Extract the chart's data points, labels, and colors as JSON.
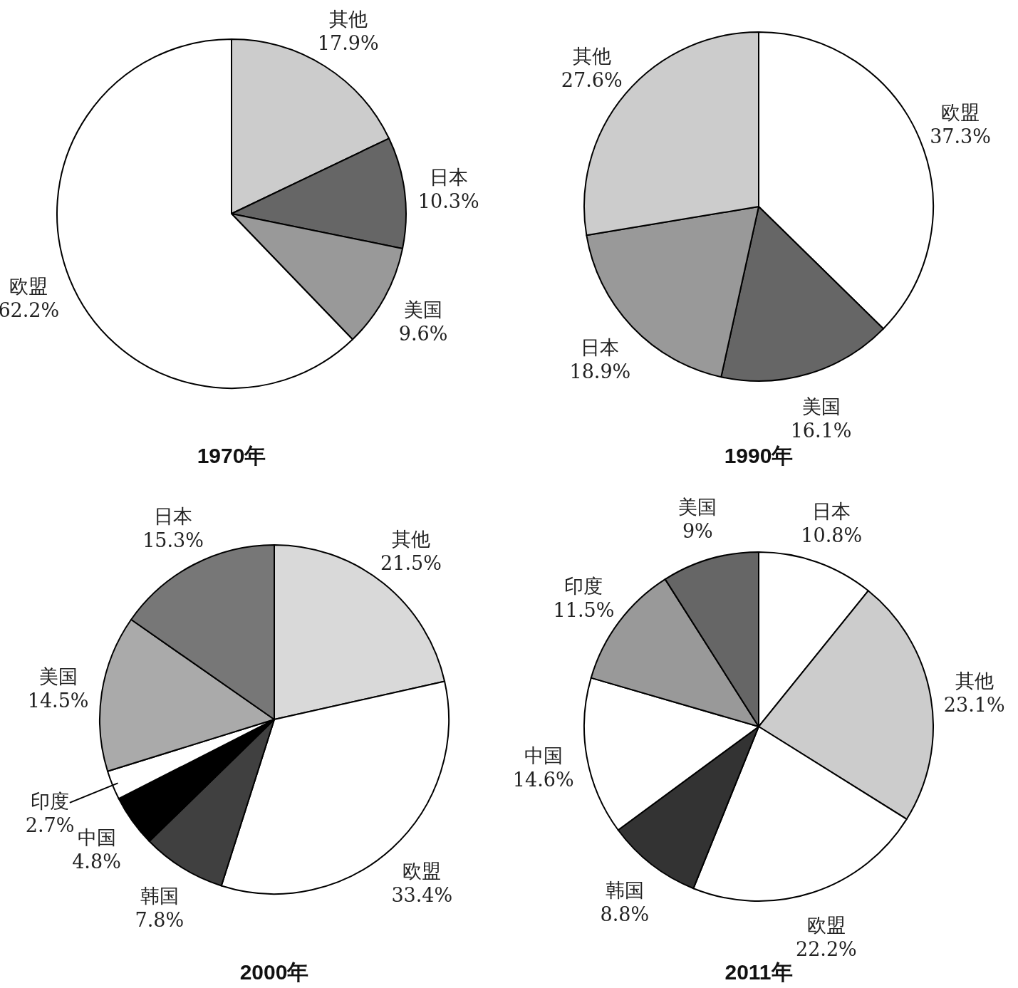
{
  "chart_data": [
    {
      "type": "pie",
      "title": "1970年",
      "categories": [
        "其他",
        "日本",
        "美国",
        "欧盟"
      ],
      "values": [
        17.9,
        10.3,
        9.6,
        62.2
      ],
      "value_labels": [
        "17.9%",
        "10.3%",
        "9.6%",
        "62.2%"
      ],
      "colors": [
        "#cccccc",
        "#666666",
        "#999999",
        "#ffffff"
      ]
    },
    {
      "type": "pie",
      "title": "1990年",
      "categories": [
        "欧盟",
        "美国",
        "日本",
        "其他"
      ],
      "values": [
        37.3,
        16.1,
        18.9,
        27.6
      ],
      "value_labels": [
        "37.3%",
        "16.1%",
        "18.9%",
        "27.6%"
      ],
      "colors": [
        "#ffffff",
        "#666666",
        "#999999",
        "#cccccc"
      ]
    },
    {
      "type": "pie",
      "title": "2000年",
      "categories": [
        "其他",
        "欧盟",
        "韩国",
        "中国",
        "印度",
        "美国",
        "日本"
      ],
      "values": [
        21.5,
        33.4,
        7.8,
        4.8,
        2.7,
        14.5,
        15.3
      ],
      "value_labels": [
        "21.5%",
        "33.4%",
        "7.8%",
        "4.8%",
        "2.7%",
        "14.5%",
        "15.3%"
      ],
      "colors": [
        "#d9d9d9",
        "#ffffff",
        "#404040",
        "#000000",
        "#ffffff",
        "#aaaaaa",
        "#777777"
      ]
    },
    {
      "type": "pie",
      "title": "2011年",
      "categories": [
        "日本",
        "其他",
        "欧盟",
        "韩国",
        "中国",
        "印度",
        "美国"
      ],
      "values": [
        10.8,
        23.1,
        22.2,
        8.8,
        14.6,
        11.5,
        9
      ],
      "value_labels": [
        "10.8%",
        "23.1%",
        "22.2%",
        "8.8%",
        "14.6%",
        "11.5%",
        "9%"
      ],
      "colors": [
        "#ffffff",
        "#cccccc",
        "#ffffff",
        "#333333",
        "#ffffff",
        "#999999",
        "#666666"
      ]
    }
  ]
}
